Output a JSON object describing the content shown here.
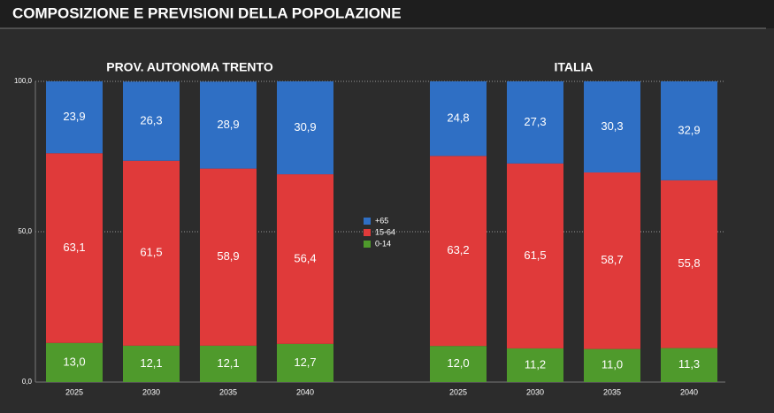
{
  "chart_data": {
    "type": "bar",
    "stacked": true,
    "title": "COMPOSIZIONE E PREVISIONI DELLA POPOLAZIONE",
    "groups": [
      {
        "name": "PROV. AUTONOMA TRENTO",
        "size": 4
      },
      {
        "name": "ITALIA",
        "size": 4
      }
    ],
    "categories": [
      "2025",
      "2030",
      "2035",
      "2040",
      "2025",
      "2030",
      "2035",
      "2040"
    ],
    "series": [
      {
        "name": "0-14",
        "color": "#4f9a2c",
        "values": [
          13.0,
          12.1,
          12.1,
          12.7,
          12.0,
          11.2,
          11.0,
          11.3
        ],
        "value_labels": [
          "13,0",
          "12,1",
          "12,1",
          "12,7",
          "12,0",
          "11,2",
          "11,0",
          "11,3"
        ]
      },
      {
        "name": "15-64",
        "color": "#e03a3a",
        "values": [
          63.1,
          61.5,
          58.9,
          56.4,
          63.2,
          61.5,
          58.7,
          55.8
        ],
        "value_labels": [
          "63,1",
          "61,5",
          "58,9",
          "56,4",
          "63,2",
          "61,5",
          "58,7",
          "55,8"
        ]
      },
      {
        "name": "+65",
        "color": "#2f6fc4",
        "values": [
          23.9,
          26.3,
          28.9,
          30.9,
          24.8,
          27.3,
          30.3,
          32.9
        ],
        "value_labels": [
          "23,9",
          "26,3",
          "28,9",
          "30,9",
          "24,8",
          "27,3",
          "30,3",
          "32,9"
        ]
      }
    ],
    "ylim": [
      0,
      100
    ],
    "yticks": [
      {
        "value": 0,
        "label": "0,0"
      },
      {
        "value": 50,
        "label": "50,0"
      },
      {
        "value": 100,
        "label": "100,0"
      }
    ],
    "grid": true
  }
}
